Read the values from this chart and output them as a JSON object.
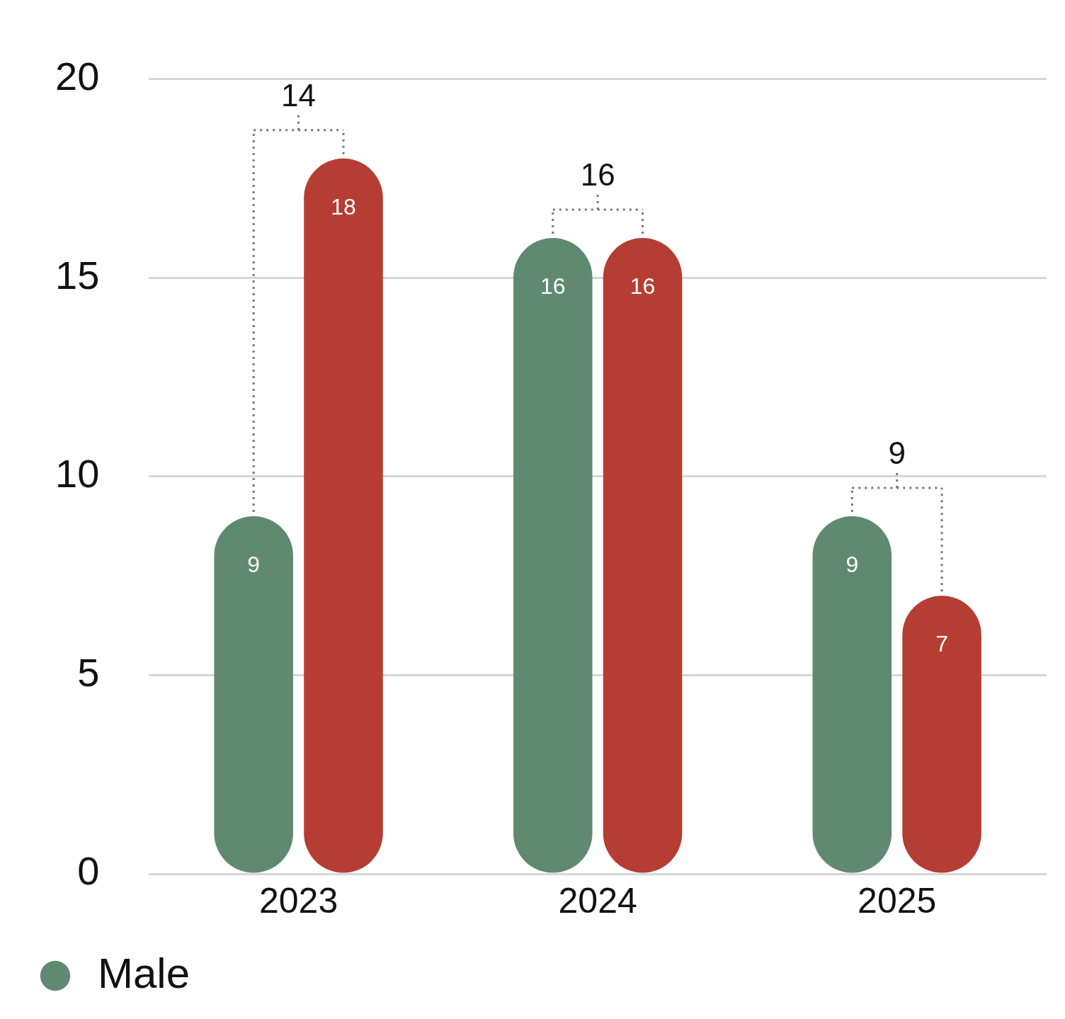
{
  "chart_data": {
    "type": "bar",
    "categories": [
      "2023",
      "2024",
      "2025"
    ],
    "series": [
      {
        "name": "Male",
        "color": "#5f8a70",
        "values": [
          9,
          16,
          9
        ]
      },
      {
        "color": "#b53d33",
        "values": [
          18,
          16,
          7
        ]
      }
    ],
    "ylim": [
      0,
      20
    ],
    "yticks": [
      0,
      5,
      10,
      15,
      20
    ],
    "grid": "y",
    "legend": "bottom left",
    "data_labels": true,
    "annotations": [
      "14",
      "16",
      "9"
    ]
  }
}
